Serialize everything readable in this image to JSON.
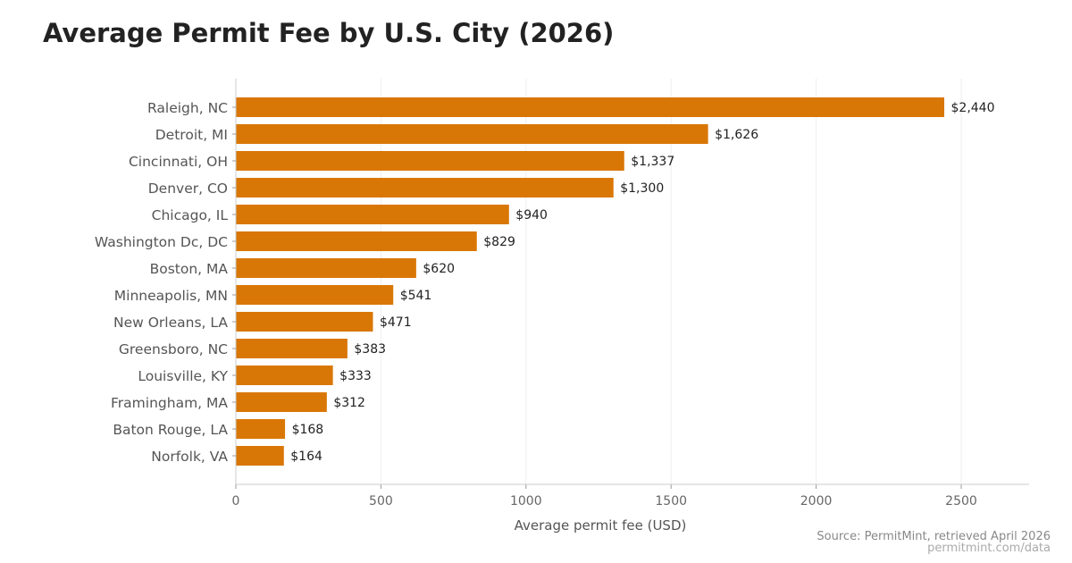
{
  "chart_data": {
    "type": "bar",
    "orientation": "horizontal",
    "title": "Average Permit Fee by U.S. City (2026)",
    "xlabel": "Average permit fee (USD)",
    "ylabel": "",
    "xlim": [
      0,
      2734
    ],
    "xticks": [
      0,
      500,
      1000,
      1500,
      2000,
      2500
    ],
    "grid": "vertical",
    "bar_color": "#d97706",
    "categories": [
      "Raleigh, NC",
      "Detroit, MI",
      "Cincinnati, OH",
      "Denver, CO",
      "Chicago, IL",
      "Washington Dc, DC",
      "Boston, MA",
      "Minneapolis, MN",
      "New Orleans, LA",
      "Greensboro, NC",
      "Louisville, KY",
      "Framingham, MA",
      "Baton Rouge, LA",
      "Norfolk, VA"
    ],
    "values": [
      2440,
      1626,
      1337,
      1300,
      940,
      829,
      620,
      541,
      471,
      383,
      333,
      312,
      168,
      164
    ],
    "data_labels": [
      "$2,440",
      "$1,626",
      "$1,337",
      "$1,300",
      "$940",
      "$829",
      "$620",
      "$541",
      "$471",
      "$383",
      "$333",
      "$312",
      "$168",
      "$164"
    ]
  },
  "footer": {
    "source": "Source: PermitMint, retrieved April 2026",
    "site": "permitmint.com/data"
  }
}
